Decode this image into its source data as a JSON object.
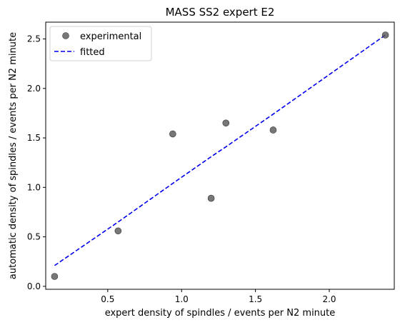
{
  "chart_data": {
    "type": "scatter",
    "title": "MASS SS2 expert E2",
    "xlabel": "expert density of spindles / events per N2 minute",
    "ylabel": "automatic density of spindles / events per N2 minute",
    "xlim": [
      0.08,
      2.44
    ],
    "ylim": [
      -0.03,
      2.67
    ],
    "xticks": [
      0.5,
      1.0,
      1.5,
      2.0
    ],
    "xtick_labels": [
      "0.5",
      "1.0",
      "1.5",
      "2.0"
    ],
    "yticks": [
      0.0,
      0.5,
      1.0,
      1.5,
      2.0,
      2.5
    ],
    "ytick_labels": [
      "0.0",
      "0.5",
      "1.0",
      "1.5",
      "2.0",
      "2.5"
    ],
    "grid": false,
    "legend_position": "top-left",
    "series": [
      {
        "name": "experimental",
        "kind": "scatter",
        "color": "#555555",
        "x": [
          0.14,
          0.57,
          0.94,
          1.2,
          1.3,
          1.62,
          2.38
        ],
        "y": [
          0.1,
          0.56,
          1.54,
          0.89,
          1.65,
          1.58,
          2.54
        ]
      },
      {
        "name": "fitted",
        "kind": "line",
        "style": "dashed",
        "color": "#0000ee",
        "x": [
          0.14,
          0.57,
          0.94,
          1.2,
          1.3,
          1.62,
          2.38
        ],
        "y": [
          0.21,
          0.65,
          1.04,
          1.31,
          1.41,
          1.74,
          2.54
        ]
      }
    ]
  }
}
